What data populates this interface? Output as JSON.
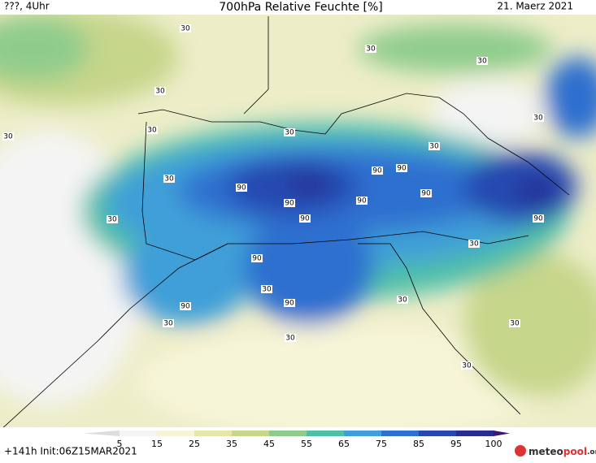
{
  "header": {
    "left": "???, 4Uhr",
    "title": "700hPa Relative Feuchte [%]",
    "date": "21. Maerz 2021"
  },
  "footer": {
    "run": "+141h Init:06Z15MAR2021",
    "logo_a": "meteo",
    "logo_b": "pool",
    "logo_c": ".org"
  },
  "colorbar": {
    "ticks": [
      5,
      15,
      25,
      35,
      45,
      55,
      65,
      75,
      85,
      95,
      100
    ],
    "colors": [
      "#f4f4f4",
      "#f7f5d8",
      "#e6e6a8",
      "#c6d68a",
      "#8fcc8c",
      "#4fbfa8",
      "#3f9fd8",
      "#2f6fcf",
      "#2848b0",
      "#282c90"
    ]
  },
  "contour_labels": [
    30,
    30,
    30,
    30,
    30,
    30,
    30,
    30,
    30,
    30,
    30,
    30,
    30,
    30,
    30,
    30,
    30,
    30,
    90,
    90,
    90,
    90,
    90,
    90,
    90,
    90,
    90,
    90,
    90
  ]
}
